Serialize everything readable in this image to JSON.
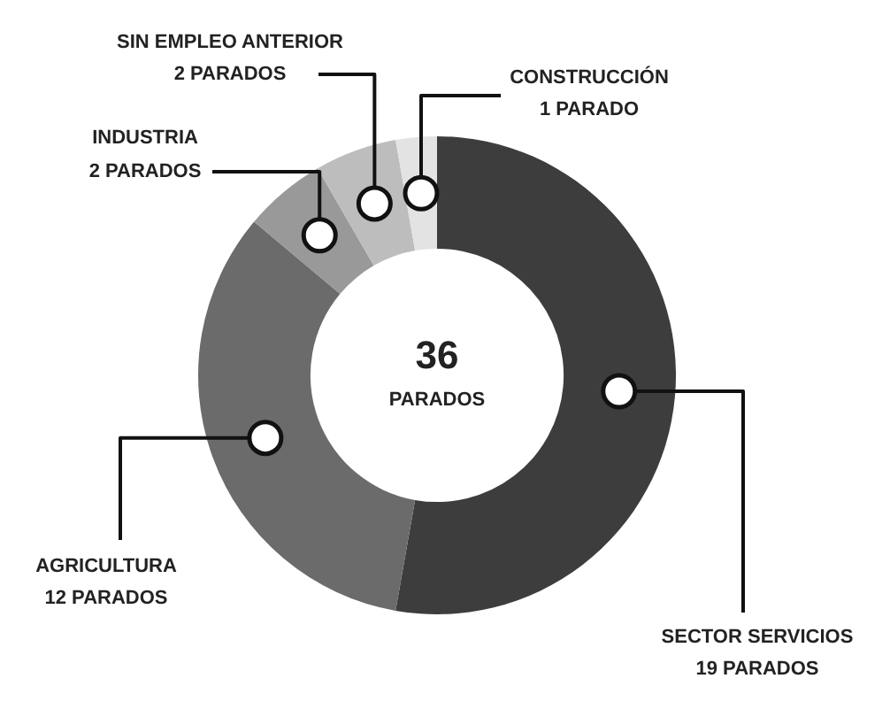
{
  "chart_data": {
    "type": "donut",
    "categories": [
      "SECTOR SERVICIOS",
      "AGRICULTURA",
      "INDUSTRIA",
      "SIN EMPLEO ANTERIOR",
      "CONSTRUCCIÓN"
    ],
    "values": [
      19,
      12,
      2,
      2,
      1
    ],
    "value_labels": [
      "19 PARADOS",
      "12 PARADOS",
      "2 PARADOS",
      "2 PARADOS",
      "1 PARADO"
    ],
    "colors": [
      "#3d3d3d",
      "#6b6b6b",
      "#999999",
      "#bdbdbd",
      "#e3e3e3"
    ],
    "annotations": [
      "36",
      "PARADOS"
    ]
  }
}
